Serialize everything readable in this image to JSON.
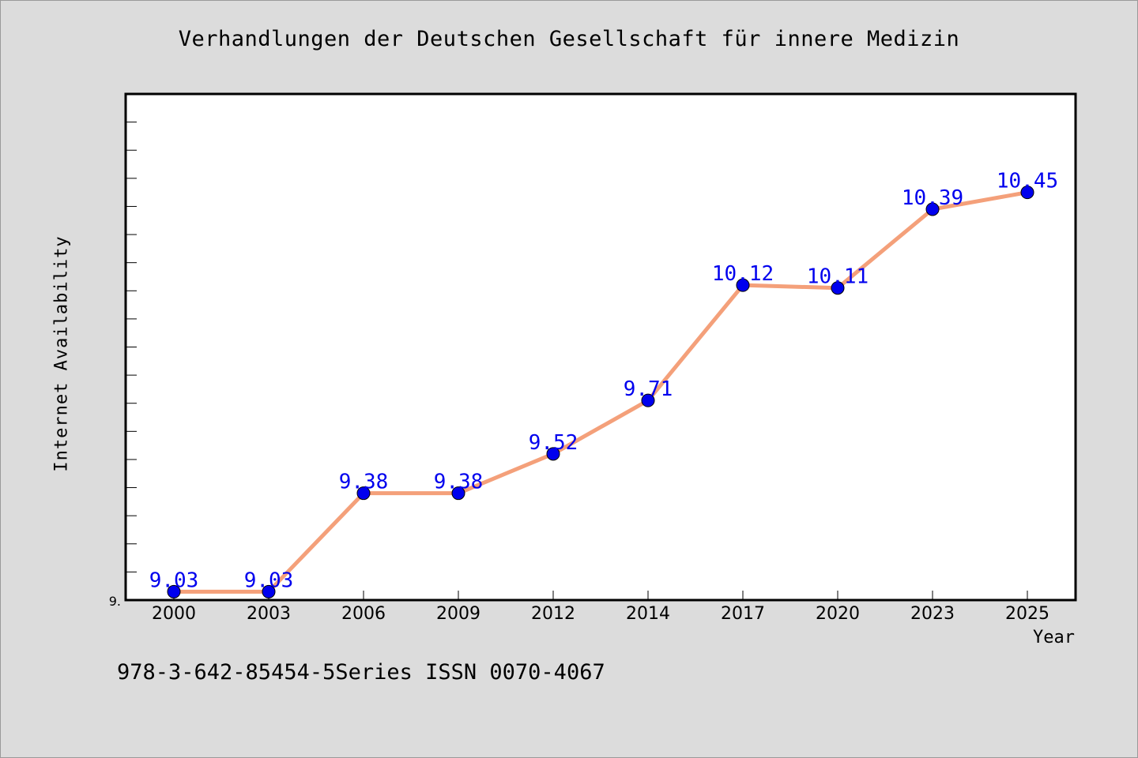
{
  "chart_data": {
    "type": "line",
    "title": "Verhandlungen der Deutschen Gesellschaft für innere Medizin",
    "xlabel": "Year",
    "ylabel": "Internet Availability",
    "categories": [
      "2000",
      "2003",
      "2006",
      "2009",
      "2012",
      "2014",
      "2017",
      "2020",
      "2023",
      "2025"
    ],
    "values": [
      9.03,
      9.03,
      9.38,
      9.38,
      9.52,
      9.71,
      10.12,
      10.11,
      10.39,
      10.45
    ],
    "data_labels": [
      "9.03",
      "9.03",
      "9.38",
      "9.38",
      "9.52",
      "9.71",
      "10.12",
      "10.11",
      "10.39",
      "10.45"
    ],
    "y_tick_label": "9.",
    "ylim": [
      9.0,
      10.8
    ],
    "grid": false,
    "line_color": "#f4a07a",
    "marker_color": "#0000ee",
    "label_color": "#0000ee"
  },
  "footer_text": "978-3-642-85454-5Series ISSN 0070-4067"
}
